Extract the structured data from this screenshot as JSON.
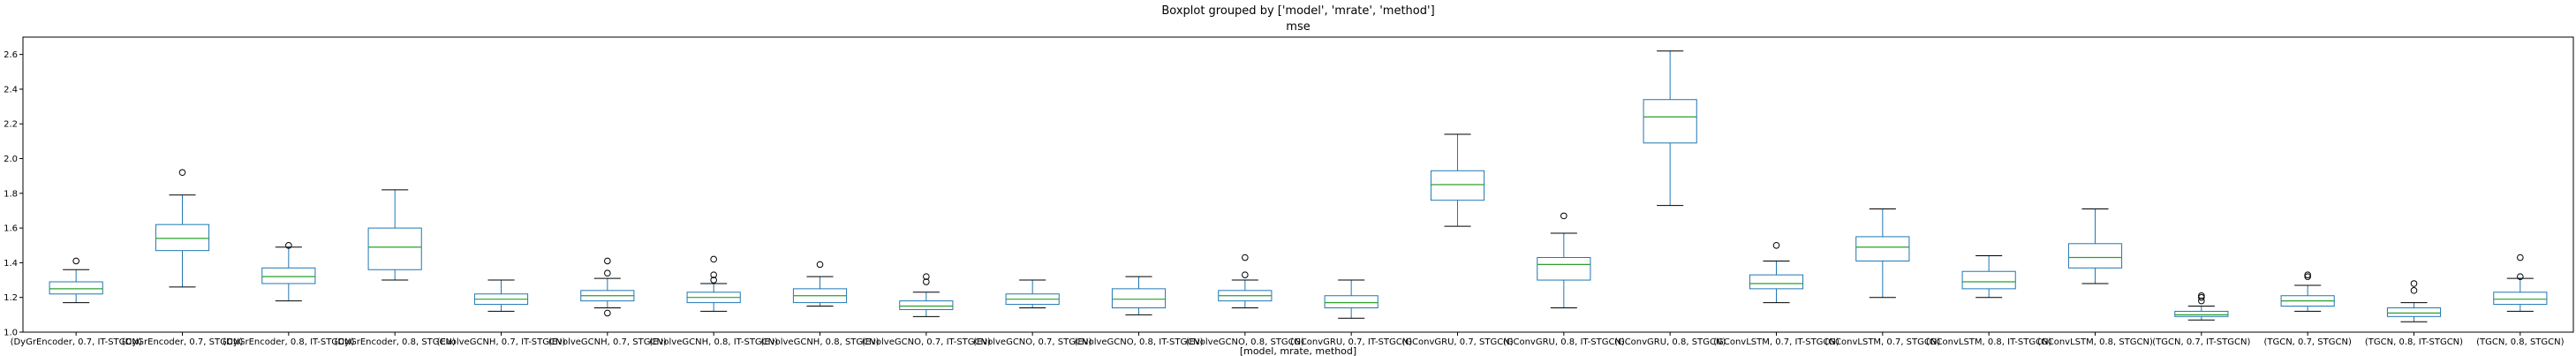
{
  "chart_data": {
    "type": "boxplot",
    "suptitle": "Boxplot grouped by ['model', 'mrate', 'method']",
    "title": "mse",
    "xlabel": "[model, mrate, method]",
    "ylabel": "",
    "ylim": [
      1.0,
      2.7
    ],
    "yticks": [
      1.0,
      1.2,
      1.4,
      1.6,
      1.8,
      2.0,
      2.2,
      2.4,
      2.6
    ],
    "ytick_labels": [
      "1.0",
      "1.2",
      "1.4",
      "1.6",
      "1.8",
      "2.0",
      "2.2",
      "2.4",
      "2.6"
    ],
    "grid": false,
    "colors": {
      "box": "#1f77b4",
      "median": "#2ca02c",
      "axis": "#000000"
    },
    "categories": [
      "(DyGrEncoder, 0.7, IT-STGCN)",
      "(DyGrEncoder, 0.7, STGCN)",
      "(DyGrEncoder, 0.8, IT-STGCN)",
      "(DyGrEncoder, 0.8, STGCN)",
      "(EvolveGCNH, 0.7, IT-STGCN)",
      "(EvolveGCNH, 0.7, STGCN)",
      "(EvolveGCNH, 0.8, IT-STGCN)",
      "(EvolveGCNH, 0.8, STGCN)",
      "(EvolveGCNO, 0.7, IT-STGCN)",
      "(EvolveGCNO, 0.7, STGCN)",
      "(EvolveGCNO, 0.8, IT-STGCN)",
      "(EvolveGCNO, 0.8, STGCN)",
      "(GConvGRU, 0.7, IT-STGCN)",
      "(GConvGRU, 0.7, STGCN)",
      "(GConvGRU, 0.8, IT-STGCN)",
      "(GConvGRU, 0.8, STGCN)",
      "(GConvLSTM, 0.7, IT-STGCN)",
      "(GConvLSTM, 0.7, STGCN)",
      "(GConvLSTM, 0.8, IT-STGCN)",
      "(GConvLSTM, 0.8, STGCN)",
      "(TGCN, 0.7, IT-STGCN)",
      "(TGCN, 0.7, STGCN)",
      "(TGCN, 0.8, IT-STGCN)",
      "(TGCN, 0.8, STGCN)"
    ],
    "boxes": [
      {
        "whislo": 1.17,
        "q1": 1.22,
        "med": 1.25,
        "q3": 1.29,
        "whishi": 1.36,
        "fliers": [
          1.41
        ]
      },
      {
        "whislo": 1.26,
        "q1": 1.47,
        "med": 1.54,
        "q3": 1.62,
        "whishi": 1.79,
        "fliers": [
          1.92
        ]
      },
      {
        "whislo": 1.18,
        "q1": 1.28,
        "med": 1.32,
        "q3": 1.37,
        "whishi": 1.49,
        "fliers": [
          1.5
        ]
      },
      {
        "whislo": 1.3,
        "q1": 1.36,
        "med": 1.49,
        "q3": 1.6,
        "whishi": 1.82,
        "fliers": []
      },
      {
        "whislo": 1.12,
        "q1": 1.16,
        "med": 1.19,
        "q3": 1.22,
        "whishi": 1.3,
        "fliers": []
      },
      {
        "whislo": 1.14,
        "q1": 1.18,
        "med": 1.21,
        "q3": 1.24,
        "whishi": 1.31,
        "fliers": [
          1.34,
          1.41,
          1.11
        ]
      },
      {
        "whislo": 1.12,
        "q1": 1.17,
        "med": 1.2,
        "q3": 1.23,
        "whishi": 1.28,
        "fliers": [
          1.3,
          1.33,
          1.42
        ]
      },
      {
        "whislo": 1.15,
        "q1": 1.17,
        "med": 1.21,
        "q3": 1.25,
        "whishi": 1.32,
        "fliers": [
          1.39
        ]
      },
      {
        "whislo": 1.09,
        "q1": 1.13,
        "med": 1.15,
        "q3": 1.18,
        "whishi": 1.23,
        "fliers": [
          1.29,
          1.32
        ]
      },
      {
        "whislo": 1.14,
        "q1": 1.16,
        "med": 1.19,
        "q3": 1.22,
        "whishi": 1.3,
        "fliers": []
      },
      {
        "whislo": 1.1,
        "q1": 1.14,
        "med": 1.19,
        "q3": 1.25,
        "whishi": 1.32,
        "fliers": []
      },
      {
        "whislo": 1.14,
        "q1": 1.18,
        "med": 1.21,
        "q3": 1.24,
        "whishi": 1.3,
        "fliers": [
          1.33,
          1.43
        ]
      },
      {
        "whislo": 1.08,
        "q1": 1.14,
        "med": 1.17,
        "q3": 1.21,
        "whishi": 1.3,
        "fliers": []
      },
      {
        "whislo": 1.61,
        "q1": 1.76,
        "med": 1.85,
        "q3": 1.93,
        "whishi": 2.14,
        "fliers": []
      },
      {
        "whislo": 1.14,
        "q1": 1.3,
        "med": 1.39,
        "q3": 1.43,
        "whishi": 1.57,
        "fliers": [
          1.67
        ]
      },
      {
        "whislo": 1.73,
        "q1": 2.09,
        "med": 2.24,
        "q3": 2.34,
        "whishi": 2.62,
        "fliers": []
      },
      {
        "whislo": 1.17,
        "q1": 1.25,
        "med": 1.28,
        "q3": 1.33,
        "whishi": 1.41,
        "fliers": [
          1.5
        ]
      },
      {
        "whislo": 1.2,
        "q1": 1.41,
        "med": 1.49,
        "q3": 1.55,
        "whishi": 1.71,
        "fliers": []
      },
      {
        "whislo": 1.2,
        "q1": 1.25,
        "med": 1.29,
        "q3": 1.35,
        "whishi": 1.44,
        "fliers": []
      },
      {
        "whislo": 1.28,
        "q1": 1.37,
        "med": 1.43,
        "q3": 1.51,
        "whishi": 1.71,
        "fliers": []
      },
      {
        "whislo": 1.07,
        "q1": 1.09,
        "med": 1.1,
        "q3": 1.12,
        "whishi": 1.15,
        "fliers": [
          1.18,
          1.2,
          1.21
        ]
      },
      {
        "whislo": 1.12,
        "q1": 1.15,
        "med": 1.18,
        "q3": 1.21,
        "whishi": 1.27,
        "fliers": [
          1.32,
          1.33
        ]
      },
      {
        "whislo": 1.06,
        "q1": 1.09,
        "med": 1.11,
        "q3": 1.14,
        "whishi": 1.17,
        "fliers": [
          1.24,
          1.28
        ]
      },
      {
        "whislo": 1.12,
        "q1": 1.16,
        "med": 1.19,
        "q3": 1.23,
        "whishi": 1.31,
        "fliers": [
          1.32,
          1.43
        ]
      }
    ]
  }
}
